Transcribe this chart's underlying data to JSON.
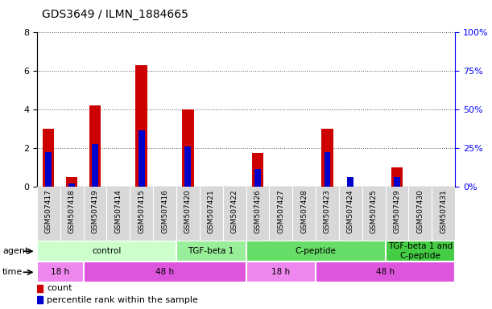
{
  "title": "GDS3649 / ILMN_1884665",
  "samples": [
    "GSM507417",
    "GSM507418",
    "GSM507419",
    "GSM507414",
    "GSM507415",
    "GSM507416",
    "GSM507420",
    "GSM507421",
    "GSM507422",
    "GSM507426",
    "GSM507427",
    "GSM507428",
    "GSM507423",
    "GSM507424",
    "GSM507425",
    "GSM507429",
    "GSM507430",
    "GSM507431"
  ],
  "count_values": [
    3.0,
    0.5,
    4.2,
    0.0,
    6.3,
    0.0,
    4.0,
    0.0,
    0.0,
    1.75,
    0.0,
    0.0,
    3.0,
    0.0,
    0.0,
    1.0,
    0.0,
    0.0
  ],
  "percentile_values": [
    1.8,
    0.18,
    2.2,
    0.0,
    2.9,
    0.0,
    2.1,
    0.0,
    0.0,
    0.9,
    0.0,
    0.0,
    1.8,
    0.48,
    0.0,
    0.48,
    0.0,
    0.0
  ],
  "ylim_left": [
    0,
    8
  ],
  "ylim_right": [
    0,
    100
  ],
  "yticks_left": [
    0,
    2,
    4,
    6,
    8
  ],
  "yticks_right": [
    0,
    25,
    50,
    75,
    100
  ],
  "ytick_right_labels": [
    "0%",
    "25%",
    "50%",
    "75%",
    "100%"
  ],
  "bar_color_count": "#cc0000",
  "bar_color_pct": "#0000cc",
  "bar_width": 0.5,
  "agent_groups": [
    {
      "label": "control",
      "start": 0,
      "end": 5,
      "color": "#ccffcc"
    },
    {
      "label": "TGF-beta 1",
      "start": 6,
      "end": 8,
      "color": "#99ee99"
    },
    {
      "label": "C-peptide",
      "start": 9,
      "end": 14,
      "color": "#66dd66"
    },
    {
      "label": "TGF-beta 1 and\nC-peptide",
      "start": 15,
      "end": 17,
      "color": "#44cc44"
    }
  ],
  "time_groups": [
    {
      "label": "18 h",
      "start": 0,
      "end": 1,
      "color": "#ee88ee"
    },
    {
      "label": "48 h",
      "start": 2,
      "end": 8,
      "color": "#dd55dd"
    },
    {
      "label": "18 h",
      "start": 9,
      "end": 11,
      "color": "#ee88ee"
    },
    {
      "label": "48 h",
      "start": 12,
      "end": 17,
      "color": "#dd55dd"
    }
  ],
  "bg_color": "#ffffff",
  "grid_color": "#555555",
  "plot_bg": "#ffffff",
  "sample_bg": "#d8d8d8",
  "title_fontsize": 10
}
